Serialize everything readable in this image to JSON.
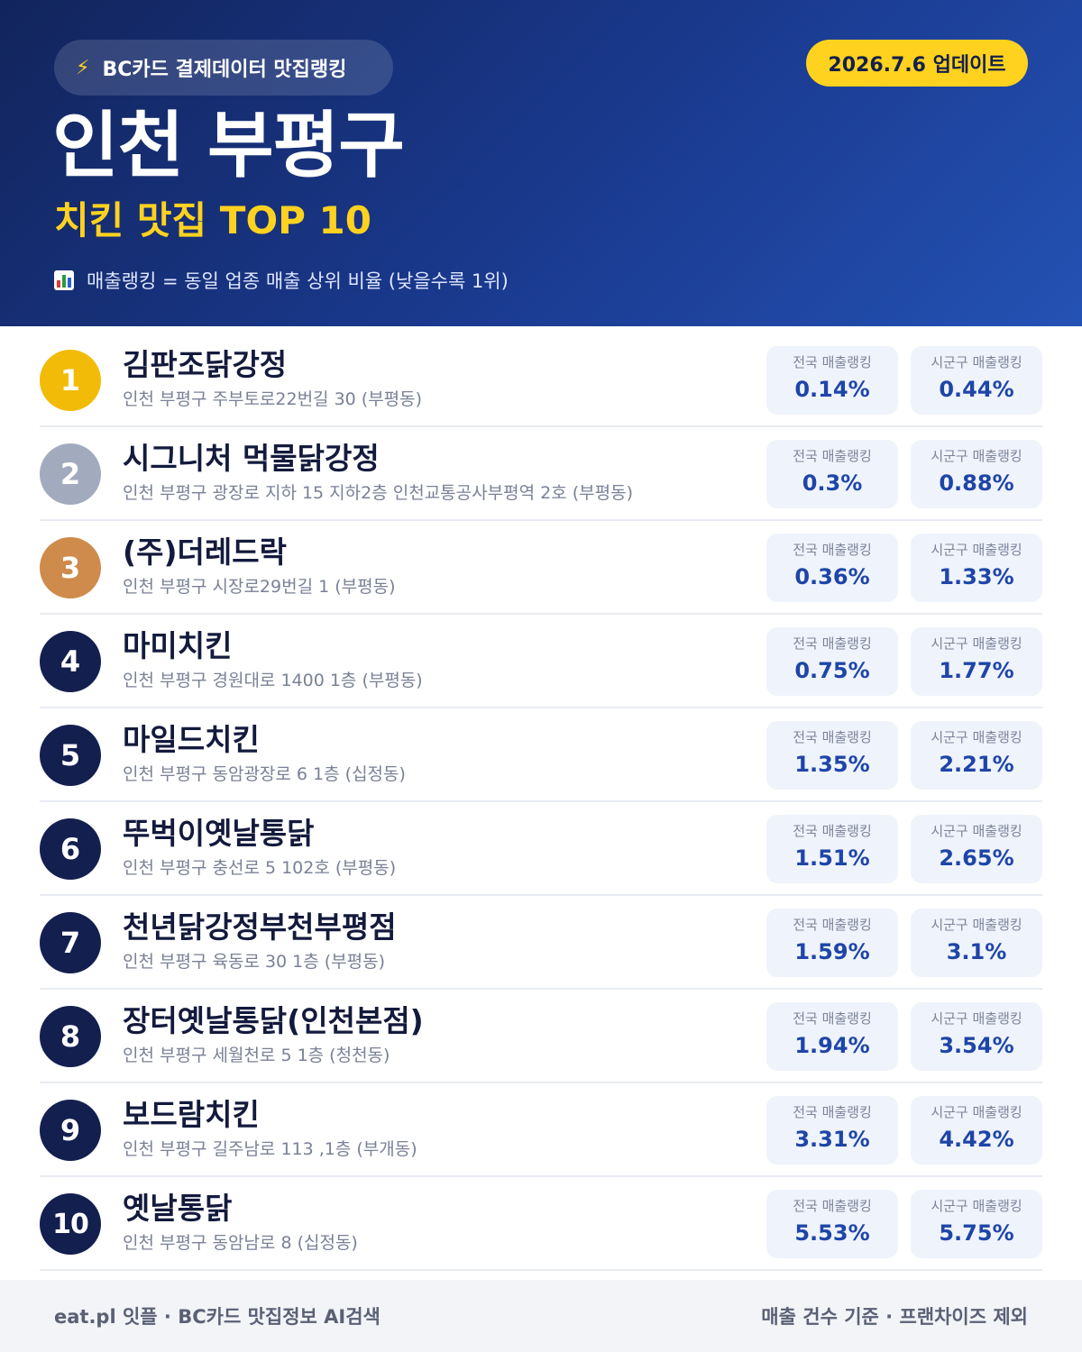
{
  "header": {
    "source_label": "BC카드 결제데이터 맛집랭킹",
    "update_label": "2026.7.6 업데이트",
    "region": "인천 부평구",
    "category": "치킨 맛집 TOP 10",
    "legend": "매출랭킹 = 동일 업종 매출 상위 비율 (낮을수록 1위)"
  },
  "stat_labels": {
    "national": "전국 매출랭킹",
    "local": "시군구 매출랭킹"
  },
  "restaurants": [
    {
      "rank": "1",
      "name": "김판조닭강정",
      "address": "인천 부평구 주부토로22번길 30 (부평동)",
      "national": "0.14%",
      "local": "0.44%"
    },
    {
      "rank": "2",
      "name": "시그니처 먹물닭강정",
      "address": "인천 부평구 광장로 지하 15 지하2층 인천교통공사부평역 2호 (부평동)",
      "national": "0.3%",
      "local": "0.88%"
    },
    {
      "rank": "3",
      "name": "(주)더레드락",
      "address": "인천 부평구 시장로29번길 1 (부평동)",
      "national": "0.36%",
      "local": "1.33%"
    },
    {
      "rank": "4",
      "name": "마미치킨",
      "address": "인천 부평구 경원대로 1400 1층 (부평동)",
      "national": "0.75%",
      "local": "1.77%"
    },
    {
      "rank": "5",
      "name": "마일드치킨",
      "address": "인천 부평구 동암광장로 6 1층 (십정동)",
      "national": "1.35%",
      "local": "2.21%"
    },
    {
      "rank": "6",
      "name": "뚜벅이옛날통닭",
      "address": "인천 부평구 충선로 5 102호 (부평동)",
      "national": "1.51%",
      "local": "2.65%"
    },
    {
      "rank": "7",
      "name": "천년닭강정부천부평점",
      "address": "인천 부평구 육동로 30 1층 (부평동)",
      "national": "1.59%",
      "local": "3.1%"
    },
    {
      "rank": "8",
      "name": "장터옛날통닭(인천본점)",
      "address": "인천 부평구 세월천로 5 1층 (청천동)",
      "national": "1.94%",
      "local": "3.54%"
    },
    {
      "rank": "9",
      "name": "보드람치킨",
      "address": "인천 부평구 길주남로 113 ,1층 (부개동)",
      "national": "3.31%",
      "local": "4.42%"
    },
    {
      "rank": "10",
      "name": "옛날통닭",
      "address": "인천 부평구 동암남로 8 (십정동)",
      "national": "5.53%",
      "local": "5.75%"
    }
  ],
  "footer": {
    "left": "eat.pl 잇플 · BC카드 맛집정보 AI검색",
    "right": "매출 건수 기준 · 프랜차이즈 제외"
  },
  "colors": {
    "header_dark": "#12245c",
    "header_light": "#2452b4",
    "accent_yellow": "#ffd21f",
    "gold": "#f2bb08",
    "silver": "#a2abbe",
    "bronze": "#cf8b4c",
    "navy": "#131f4f",
    "value_blue": "#1e45a8"
  },
  "icons": {
    "source": "lightning-bolt-icon",
    "legend": "bar-chart-icon"
  }
}
